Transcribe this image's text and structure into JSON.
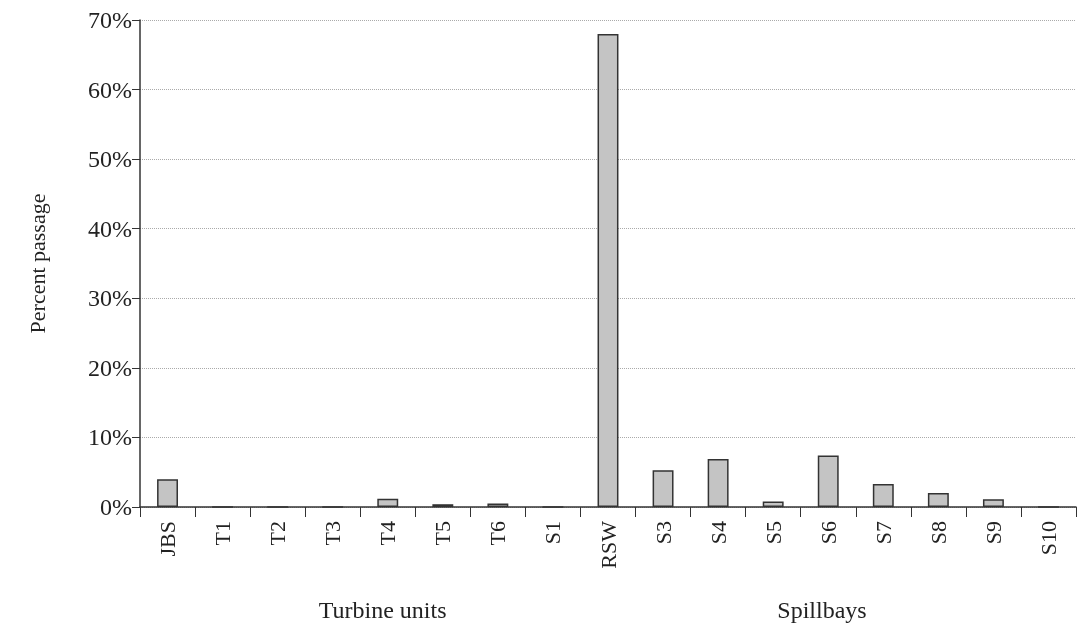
{
  "chart_data": {
    "type": "bar",
    "ylabel": "Percent passage",
    "categories": [
      "JBS",
      "T1",
      "T2",
      "T3",
      "T4",
      "T5",
      "T6",
      "S1",
      "RSW",
      "S3",
      "S4",
      "S5",
      "S6",
      "S7",
      "S8",
      "S9",
      "S10"
    ],
    "values": [
      4.0,
      0,
      0,
      0,
      1.2,
      0.4,
      0.5,
      0,
      68,
      5.3,
      6.9,
      0.8,
      7.4,
      3.3,
      2.0,
      1.1,
      0
    ],
    "color": "#c4c4c4",
    "ylim": [
      0,
      70
    ],
    "yticks": [
      {
        "value": 0,
        "label": "0%"
      },
      {
        "value": 10,
        "label": "10%"
      },
      {
        "value": 20,
        "label": "20%"
      },
      {
        "value": 30,
        "label": "30%"
      },
      {
        "value": 40,
        "label": "40%"
      },
      {
        "value": 50,
        "label": "50%"
      },
      {
        "value": 60,
        "label": "60%"
      },
      {
        "value": 70,
        "label": "70%"
      }
    ],
    "grid": "y",
    "annotations": [
      "Turbine units",
      "Spillbays"
    ]
  }
}
